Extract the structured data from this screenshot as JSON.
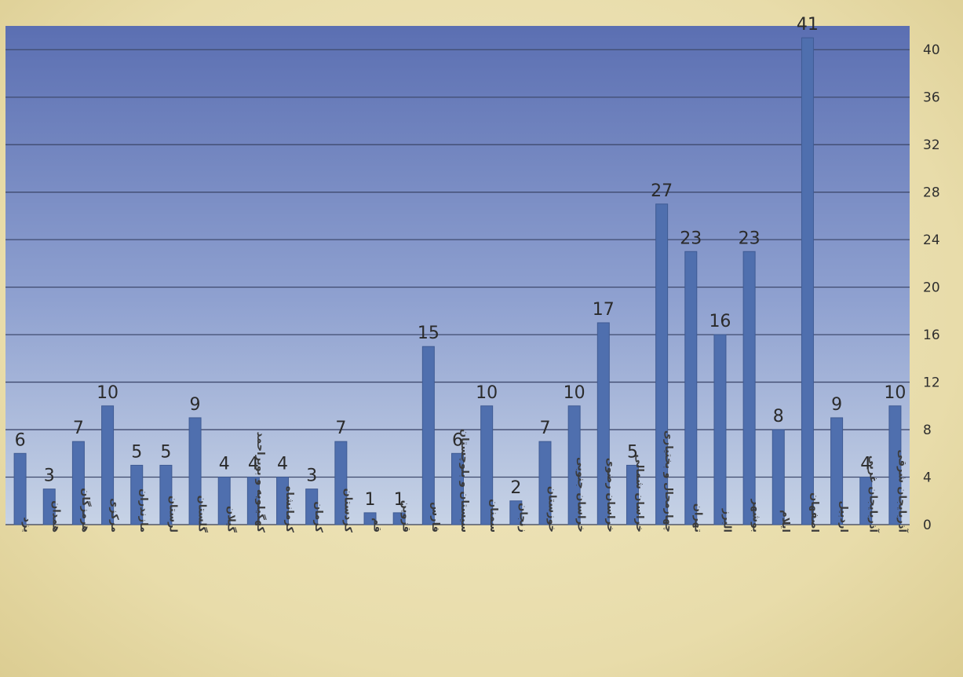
{
  "chart_data": {
    "type": "bar",
    "categories": [
      "یزد",
      "همدان",
      "هرمزگان",
      "مرکزی",
      "مازندران",
      "لرستان",
      "گلستان",
      "گیلان",
      "کهگیلویه و بویراحمد",
      "کرمانشاه",
      "کرمان",
      "کردستان",
      "قم",
      "قزوین",
      "فارس",
      "سیستان و بلوچستان",
      "سمنان",
      "زنجان",
      "خوزستان",
      "خراسان جنوبی",
      "خراسان رضوی",
      "خراسان شمالی",
      "چهارمحال و بختیاری",
      "تهران",
      "البرز",
      "بوشهر",
      "ایلام",
      "اصفهان",
      "اردبیل",
      "آذربایجان غربی",
      "آذربایجان شرقی"
    ],
    "values": [
      6,
      3,
      7,
      10,
      5,
      5,
      9,
      4,
      4,
      4,
      3,
      7,
      1,
      1,
      15,
      6,
      10,
      2,
      7,
      10,
      17,
      5,
      27,
      23,
      16,
      23,
      8,
      41,
      9,
      4,
      10
    ],
    "ylim": [
      0,
      42
    ],
    "yticks": [
      0,
      4,
      8,
      12,
      16,
      20,
      24,
      28,
      32,
      36,
      40
    ],
    "y_axis_side": "right",
    "grid": true,
    "data_labels": true,
    "title": "",
    "xlabel": "",
    "ylabel": "",
    "colors": {
      "bar": "#4f6fae",
      "bar_edge": "#3f5b94",
      "plot_bg_top": "#5b6fb2",
      "plot_bg_bottom": "#c7d3e6",
      "gridline": "#3f4a6e"
    }
  }
}
